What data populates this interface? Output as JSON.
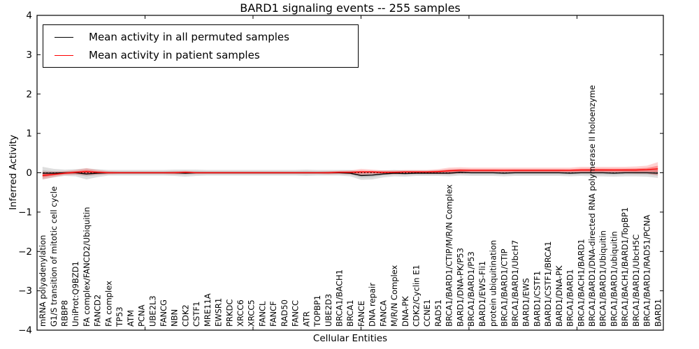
{
  "chart_data": {
    "type": "line",
    "title": "BARD1 signaling events -- 255 samples",
    "xlabel": "Cellular Entities",
    "ylabel": "Inferred Activity",
    "ylim": [
      -4,
      4
    ],
    "ytick_values": [
      4,
      3,
      2,
      1,
      0,
      -1,
      -2,
      -3,
      -4
    ],
    "ytick_labels": [
      "4",
      "3",
      "2",
      "1",
      "0",
      "−1",
      "−2",
      "−3",
      "−4"
    ],
    "xtick_axis_positions": [
      10,
      20,
      30,
      40,
      50
    ],
    "grid": false,
    "zero_line_style": "dotted",
    "legend_position": "upper left",
    "categories": [
      "mRNA polyadenylation",
      "G1/S transition of mitotic cell cycle",
      "RBBP8",
      "UniProt:Q9BZD1",
      "FA complex/FANCD2/Ubiquitin",
      "FANCD2",
      "FA complex",
      "TP53",
      "ATM",
      "PCNA",
      "UBE2L3",
      "FANCG",
      "NBN",
      "CDK2",
      "CSTF1",
      "MRE11A",
      "EWSR1",
      "PRKDC",
      "XRCC6",
      "XRCC5",
      "FANCL",
      "FANCF",
      "RAD50",
      "FANCC",
      "ATR",
      "TOPBP1",
      "UBE2D3",
      "BRCA1/BACH1",
      "BRCA1",
      "FANCE",
      "DNA repair",
      "FANCA",
      "M/R/N Complex",
      "DNA-PK",
      "CDK2/Cyclin E1",
      "CCNE1",
      "RAD51",
      "BRCA1/BARD1/CTIP/M/R/N Complex",
      "BARD1/DNA-PK/P53",
      "BRCA1/BARD1/P53",
      "BARD1/EWS-Fli1",
      "protein ubiquitination",
      "BRCA1/BARD1/CTIP",
      "BRCA1/BARD1/UbcH7",
      "BARD1/EWS",
      "BARD1/CSTF1",
      "BARD1/CSTF1/BRCA1",
      "BARD1/DNA-PK",
      "BRCA1/BARD1",
      "BRCA1/BACH1/BARD1",
      "BRCA1/BARD1/DNA-directed RNA polymerase II holoenzyme",
      "BRCA1/BARD1/Ubiquitin",
      "BRCA1/BARD1/ubiquitin",
      "BRCA1/BACH1/BARD1/TopBP1",
      "BRCA1/BARD1/UbcH5C",
      "BRCA1/BARD1/RAD51/PCNA",
      "BARD1"
    ],
    "series": [
      {
        "name": "Mean activity in all permuted samples",
        "color": "#000000",
        "values": [
          -0.01,
          -0.01,
          0,
          0,
          -0.03,
          -0.01,
          0,
          0,
          0,
          0,
          0,
          0,
          0,
          -0.01,
          0,
          0,
          0,
          0,
          0,
          0,
          0,
          0,
          0,
          0,
          0,
          0,
          0,
          0,
          -0.01,
          -0.07,
          -0.06,
          -0.03,
          -0.01,
          -0.02,
          -0.01,
          -0.01,
          -0.01,
          -0.01,
          0.01,
          0,
          0,
          0,
          -0.01,
          0,
          0,
          0,
          0,
          0,
          -0.01,
          0,
          0,
          0,
          -0.01,
          0,
          0,
          0,
          -0.01
        ],
        "band": [
          0.16,
          0.11,
          0.08,
          0.09,
          0.14,
          0.1,
          0.07,
          0.07,
          0.07,
          0.07,
          0.07,
          0.07,
          0.08,
          0.09,
          0.08,
          0.07,
          0.07,
          0.07,
          0.07,
          0.07,
          0.07,
          0.07,
          0.07,
          0.07,
          0.08,
          0.07,
          0.07,
          0.07,
          0.08,
          0.11,
          0.11,
          0.09,
          0.08,
          0.08,
          0.07,
          0.07,
          0.07,
          0.08,
          0.08,
          0.08,
          0.08,
          0.08,
          0.08,
          0.08,
          0.08,
          0.08,
          0.08,
          0.08,
          0.08,
          0.08,
          0.09,
          0.09,
          0.09,
          0.09,
          0.09,
          0.1,
          0.12
        ]
      },
      {
        "name": "Mean activity in patient samples",
        "color": "#ff0000",
        "values": [
          -0.07,
          -0.04,
          -0.01,
          0.01,
          0.03,
          0.01,
          0,
          0,
          0,
          0,
          0,
          0,
          0,
          0.01,
          0,
          0,
          0,
          0,
          0,
          0,
          0,
          0,
          0,
          0,
          0,
          0,
          0,
          0.01,
          0.01,
          0.02,
          0.02,
          0.01,
          0.01,
          0.02,
          0.02,
          0.02,
          0.03,
          0.05,
          0.06,
          0.06,
          0.06,
          0.06,
          0.06,
          0.06,
          0.06,
          0.06,
          0.06,
          0.06,
          0.06,
          0.07,
          0.07,
          0.07,
          0.07,
          0.07,
          0.07,
          0.08,
          0.1
        ],
        "band": [
          0.1,
          0.07,
          0.05,
          0.06,
          0.09,
          0.06,
          0.04,
          0.03,
          0.03,
          0.03,
          0.03,
          0.03,
          0.04,
          0.04,
          0.03,
          0.03,
          0.03,
          0.03,
          0.03,
          0.03,
          0.03,
          0.03,
          0.03,
          0.03,
          0.03,
          0.03,
          0.04,
          0.04,
          0.05,
          0.08,
          0.06,
          0.05,
          0.05,
          0.05,
          0.05,
          0.05,
          0.06,
          0.08,
          0.08,
          0.07,
          0.07,
          0.07,
          0.07,
          0.07,
          0.07,
          0.07,
          0.07,
          0.07,
          0.07,
          0.08,
          0.08,
          0.08,
          0.08,
          0.08,
          0.09,
          0.1,
          0.17
        ]
      }
    ]
  }
}
